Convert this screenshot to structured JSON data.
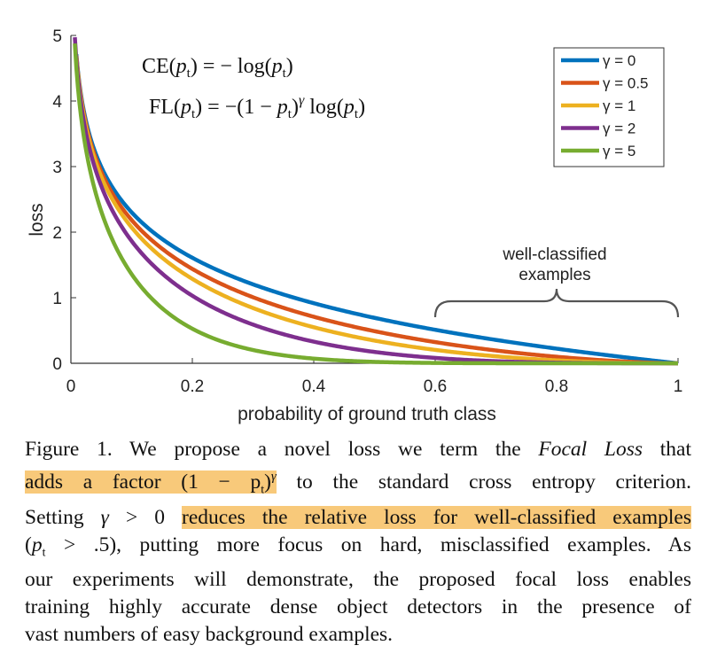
{
  "chart_data": {
    "type": "line",
    "xlabel": "probability of ground truth class",
    "ylabel": "loss",
    "xlim": [
      0,
      1
    ],
    "ylim": [
      0,
      5
    ],
    "xticks": [
      "0",
      "0.2",
      "0.4",
      "0.6",
      "0.8",
      "1"
    ],
    "yticks": [
      "0",
      "1",
      "2",
      "3",
      "4",
      "5"
    ],
    "grid": false,
    "legend_position": "top-right",
    "x": [
      0.01,
      0.02,
      0.03,
      0.05,
      0.075,
      0.1,
      0.15,
      0.2,
      0.25,
      0.3,
      0.35,
      0.4,
      0.45,
      0.5,
      0.55,
      0.6,
      0.65,
      0.7,
      0.75,
      0.8,
      0.85,
      0.9,
      0.95,
      1.0
    ],
    "series": [
      {
        "name": "γ = 0",
        "color": "#0072bd",
        "values": [
          4.61,
          3.91,
          3.51,
          3.0,
          2.59,
          2.3,
          1.9,
          1.61,
          1.39,
          1.2,
          1.05,
          0.92,
          0.8,
          0.69,
          0.6,
          0.51,
          0.43,
          0.36,
          0.29,
          0.22,
          0.16,
          0.11,
          0.05,
          0.0
        ]
      },
      {
        "name": "γ = 0.5",
        "color": "#d95319",
        "values": [
          4.58,
          3.87,
          3.46,
          2.92,
          2.49,
          2.18,
          1.75,
          1.44,
          1.2,
          1.0,
          0.85,
          0.71,
          0.59,
          0.49,
          0.4,
          0.32,
          0.25,
          0.2,
          0.15,
          0.1,
          0.06,
          0.03,
          0.01,
          0.0
        ]
      },
      {
        "name": "γ = 1",
        "color": "#edb120",
        "values": [
          4.56,
          3.83,
          3.4,
          2.85,
          2.39,
          2.07,
          1.61,
          1.29,
          1.04,
          0.84,
          0.68,
          0.55,
          0.44,
          0.35,
          0.27,
          0.2,
          0.15,
          0.11,
          0.07,
          0.04,
          0.02,
          0.01,
          0.0,
          0.0
        ]
      },
      {
        "name": "γ = 2",
        "color": "#7e2f8e",
        "values": [
          4.52,
          3.76,
          3.3,
          2.7,
          2.21,
          1.87,
          1.37,
          1.03,
          0.78,
          0.59,
          0.44,
          0.33,
          0.24,
          0.17,
          0.12,
          0.08,
          0.05,
          0.03,
          0.02,
          0.01,
          0.0,
          0.0,
          0.0,
          0.0
        ]
      },
      {
        "name": "γ = 5",
        "color": "#77ac30",
        "values": [
          4.38,
          3.54,
          3.01,
          2.32,
          1.75,
          1.36,
          0.84,
          0.53,
          0.33,
          0.2,
          0.12,
          0.07,
          0.04,
          0.02,
          0.01,
          0.0,
          0.0,
          0.0,
          0.0,
          0.0,
          0.0,
          0.0,
          0.0,
          0.0
        ]
      }
    ],
    "annotations": {
      "well_classified_line1": "well-classified",
      "well_classified_line2": "examples",
      "brace_range": [
        0.6,
        1.0
      ]
    },
    "formulas": {
      "ce": {
        "lhs": "CE(",
        "p": "p",
        "t": "t",
        "rhs": ") = − log(",
        "end": ")"
      },
      "fl": {
        "lhs": "FL(",
        "mid": ") = −(1 − ",
        "gamma": "γ",
        "log": " log(",
        "end": ")"
      }
    }
  },
  "caption": {
    "l1_a": "Figure 1. We propose a novel loss we term the ",
    "l1_em": "Focal Loss",
    "l1_b": " that",
    "l2_hl": "adds a factor (1 − p",
    "l2_sub": "t",
    "l2_close": ")",
    "l2_sup": "γ",
    "l2_b": " to the standard cross entropy criterion.",
    "l3_a": "Setting ",
    "l3_g": "γ",
    "l3_b": " > 0 ",
    "l3_hl": "reduces the relative loss for well-classified examples",
    "l4_a": "(",
    "l4_p": "p",
    "l4_sub": "t",
    "l4_b": " > .5), putting more focus on hard, misclassified examples. As",
    "l5": "our experiments will demonstrate, the proposed focal loss enables",
    "l6": "training highly accurate dense object detectors in the presence of",
    "l7": "vast numbers of easy background examples."
  }
}
